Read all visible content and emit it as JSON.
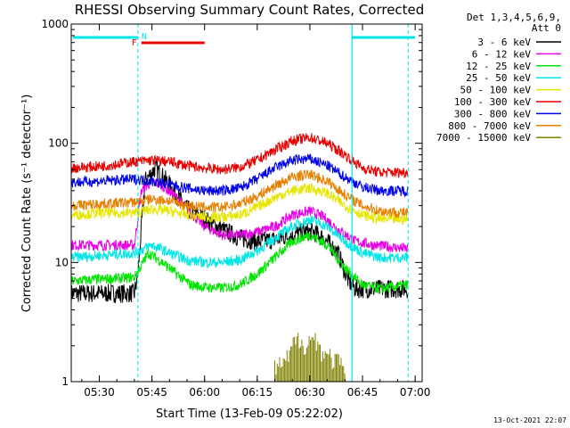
{
  "colors": {
    "interval_line": "#00e6e6",
    "flare_bar": "#e60000",
    "flare_marker": "#e60000",
    "night_marker": "#00e6e6"
  },
  "chart_data": {
    "type": "line",
    "title": "RHESSI Observing Summary Count Rates, Corrected",
    "xlabel": "Start Time (13-Feb-09 05:22:02)",
    "ylabel": "Corrected Count Rate (s⁻¹ detector⁻¹)",
    "x_unit": "time (HH:MM)",
    "xlim": [
      "05:22",
      "07:02"
    ],
    "ylim": [
      1,
      1000
    ],
    "yscale": "log",
    "x_ticks": [
      "05:30",
      "05:45",
      "06:00",
      "06:15",
      "06:30",
      "06:45",
      "07:00"
    ],
    "y_ticks": [
      "1",
      "10",
      "100",
      "1000"
    ],
    "legend_header": [
      "Det 1,3,4,5,6,9,",
      "Att 0"
    ],
    "legend_position": "right",
    "timestamp": "13-Oct-2021 22:07",
    "intervals": {
      "night_end": "05:41",
      "night_start": "06:42",
      "saa_end": "06:58",
      "night_marker": "N",
      "flare_marker": "F",
      "flare_bar": [
        "05:42",
        "06:00"
      ]
    },
    "series": [
      {
        "name": "3 - 6 keV",
        "color": "#000000",
        "points": [
          [
            "05:22",
            5.5
          ],
          [
            "05:40",
            5.5
          ],
          [
            "05:41",
            8
          ],
          [
            "05:43",
            48
          ],
          [
            "05:46",
            62
          ],
          [
            "05:50",
            45
          ],
          [
            "05:55",
            28
          ],
          [
            "06:00",
            23
          ],
          [
            "06:05",
            19
          ],
          [
            "06:10",
            16
          ],
          [
            "06:15",
            15
          ],
          [
            "06:20",
            15.5
          ],
          [
            "06:25",
            17
          ],
          [
            "06:28",
            18
          ],
          [
            "06:31",
            18
          ],
          [
            "06:34",
            16
          ],
          [
            "06:38",
            12
          ],
          [
            "06:41",
            7
          ],
          [
            "06:43",
            6
          ],
          [
            "06:58",
            6
          ]
        ]
      },
      {
        "name": "6 - 12 keV",
        "color": "#e600e6",
        "points": [
          [
            "05:22",
            14
          ],
          [
            "05:40",
            14
          ],
          [
            "05:42",
            40
          ],
          [
            "05:45",
            48
          ],
          [
            "05:48",
            44
          ],
          [
            "05:52",
            35
          ],
          [
            "05:55",
            28
          ],
          [
            "06:00",
            20
          ],
          [
            "06:05",
            17
          ],
          [
            "06:10",
            17
          ],
          [
            "06:15",
            18
          ],
          [
            "06:20",
            20
          ],
          [
            "06:25",
            25
          ],
          [
            "06:30",
            27
          ],
          [
            "06:34",
            24
          ],
          [
            "06:38",
            19
          ],
          [
            "06:43",
            15
          ],
          [
            "06:48",
            14
          ],
          [
            "06:58",
            13
          ]
        ]
      },
      {
        "name": "12 - 25 keV",
        "color": "#00e600",
        "points": [
          [
            "05:22",
            7
          ],
          [
            "05:40",
            7.5
          ],
          [
            "05:44",
            12
          ],
          [
            "05:48",
            10
          ],
          [
            "05:52",
            8
          ],
          [
            "05:56",
            6.5
          ],
          [
            "06:00",
            6.2
          ],
          [
            "06:05",
            6.1
          ],
          [
            "06:10",
            6.5
          ],
          [
            "06:15",
            8
          ],
          [
            "06:20",
            11
          ],
          [
            "06:25",
            15
          ],
          [
            "06:30",
            17
          ],
          [
            "06:35",
            14
          ],
          [
            "06:40",
            9
          ],
          [
            "06:45",
            6.5
          ],
          [
            "06:50",
            6
          ],
          [
            "06:58",
            6.5
          ]
        ]
      },
      {
        "name": "25 - 50 keV",
        "color": "#00e6e6",
        "points": [
          [
            "05:22",
            11
          ],
          [
            "05:40",
            12
          ],
          [
            "05:45",
            14
          ],
          [
            "05:50",
            12
          ],
          [
            "05:55",
            10.5
          ],
          [
            "06:00",
            10
          ],
          [
            "06:05",
            10
          ],
          [
            "06:10",
            10.5
          ],
          [
            "06:15",
            12.5
          ],
          [
            "06:20",
            16
          ],
          [
            "06:25",
            20
          ],
          [
            "06:30",
            23
          ],
          [
            "06:35",
            20
          ],
          [
            "06:40",
            15
          ],
          [
            "06:45",
            12
          ],
          [
            "06:50",
            11
          ],
          [
            "06:58",
            11
          ]
        ]
      },
      {
        "name": "50 - 100 keV",
        "color": "#e6e600",
        "points": [
          [
            "05:22",
            25
          ],
          [
            "05:30",
            26
          ],
          [
            "05:40",
            26
          ],
          [
            "05:45",
            28
          ],
          [
            "05:50",
            27
          ],
          [
            "05:55",
            25
          ],
          [
            "06:00",
            24
          ],
          [
            "06:05",
            24
          ],
          [
            "06:10",
            25
          ],
          [
            "06:15",
            29
          ],
          [
            "06:20",
            35
          ],
          [
            "06:25",
            40
          ],
          [
            "06:30",
            42
          ],
          [
            "06:35",
            38
          ],
          [
            "06:40",
            30
          ],
          [
            "06:45",
            25
          ],
          [
            "06:50",
            23
          ],
          [
            "06:58",
            23
          ]
        ]
      },
      {
        "name": "100 - 300 keV",
        "color": "#e60000",
        "points": [
          [
            "05:22",
            62
          ],
          [
            "05:30",
            64
          ],
          [
            "05:40",
            70
          ],
          [
            "05:45",
            72
          ],
          [
            "05:50",
            70
          ],
          [
            "05:55",
            65
          ],
          [
            "06:00",
            62
          ],
          [
            "06:05",
            60
          ],
          [
            "06:10",
            63
          ],
          [
            "06:15",
            72
          ],
          [
            "06:20",
            88
          ],
          [
            "06:25",
            105
          ],
          [
            "06:30",
            112
          ],
          [
            "06:35",
            100
          ],
          [
            "06:40",
            80
          ],
          [
            "06:45",
            62
          ],
          [
            "06:50",
            57
          ],
          [
            "06:58",
            57
          ]
        ]
      },
      {
        "name": "300 - 800 keV",
        "color": "#0000e6",
        "points": [
          [
            "05:22",
            47
          ],
          [
            "05:30",
            48
          ],
          [
            "05:40",
            50
          ],
          [
            "05:45",
            48
          ],
          [
            "05:50",
            45
          ],
          [
            "05:55",
            42
          ],
          [
            "06:00",
            40
          ],
          [
            "06:05",
            40
          ],
          [
            "06:10",
            42
          ],
          [
            "06:15",
            50
          ],
          [
            "06:20",
            62
          ],
          [
            "06:25",
            72
          ],
          [
            "06:30",
            74
          ],
          [
            "06:35",
            65
          ],
          [
            "06:40",
            52
          ],
          [
            "06:45",
            43
          ],
          [
            "06:50",
            40
          ],
          [
            "06:58",
            40
          ]
        ]
      },
      {
        "name": "800 - 7000 keV",
        "color": "#e68000",
        "points": [
          [
            "05:22",
            30
          ],
          [
            "05:30",
            31
          ],
          [
            "05:40",
            32
          ],
          [
            "05:45",
            34
          ],
          [
            "05:50",
            33
          ],
          [
            "05:55",
            30
          ],
          [
            "06:00",
            29
          ],
          [
            "06:05",
            29
          ],
          [
            "06:10",
            31
          ],
          [
            "06:15",
            36
          ],
          [
            "06:20",
            44
          ],
          [
            "06:25",
            52
          ],
          [
            "06:30",
            55
          ],
          [
            "06:35",
            48
          ],
          [
            "06:40",
            37
          ],
          [
            "06:45",
            30
          ],
          [
            "06:50",
            27
          ],
          [
            "06:58",
            26
          ]
        ]
      },
      {
        "name": "7000 - 15000 keV",
        "color": "#808000",
        "points": [
          [
            "06:20",
            1.6
          ],
          [
            "06:23",
            1.7
          ],
          [
            "06:25",
            2.4
          ],
          [
            "06:27",
            2.8
          ],
          [
            "06:29",
            2.5
          ],
          [
            "06:31",
            2.9
          ],
          [
            "06:33",
            2.3
          ],
          [
            "06:35",
            2.0
          ],
          [
            "06:38",
            1.8
          ],
          [
            "06:40",
            1.4
          ]
        ]
      }
    ]
  }
}
